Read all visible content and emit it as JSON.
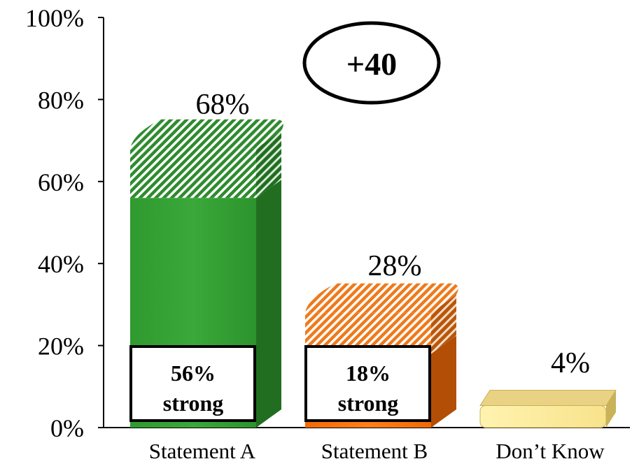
{
  "chart_data": {
    "type": "bar",
    "title": "",
    "xlabel": "",
    "ylabel": "",
    "ylim": [
      0,
      100
    ],
    "yticks": [
      0,
      20,
      40,
      60,
      80,
      100
    ],
    "ytick_labels": [
      "0%",
      "20%",
      "40%",
      "60%",
      "80%",
      "100%"
    ],
    "categories": [
      "Statement A",
      "Statement B",
      "Don’t Know"
    ],
    "values": [
      68,
      28,
      4
    ],
    "value_labels": [
      "68%",
      "28%",
      "4%"
    ],
    "strong_values": [
      56,
      18,
      null
    ],
    "strong_labels": [
      {
        "pct": "56%",
        "word": "strong"
      },
      {
        "pct": "18%",
        "word": "strong"
      }
    ],
    "colors": {
      "statement_a": "#3a9e3a",
      "statement_a_dark": "#216e21",
      "statement_b": "#f07a1e",
      "statement_b_dark": "#b24e05",
      "dont_know": "#fbe99a",
      "dont_know_dark": "#c8b25a"
    },
    "annotation": "+40",
    "grid": false,
    "legend": "none"
  }
}
